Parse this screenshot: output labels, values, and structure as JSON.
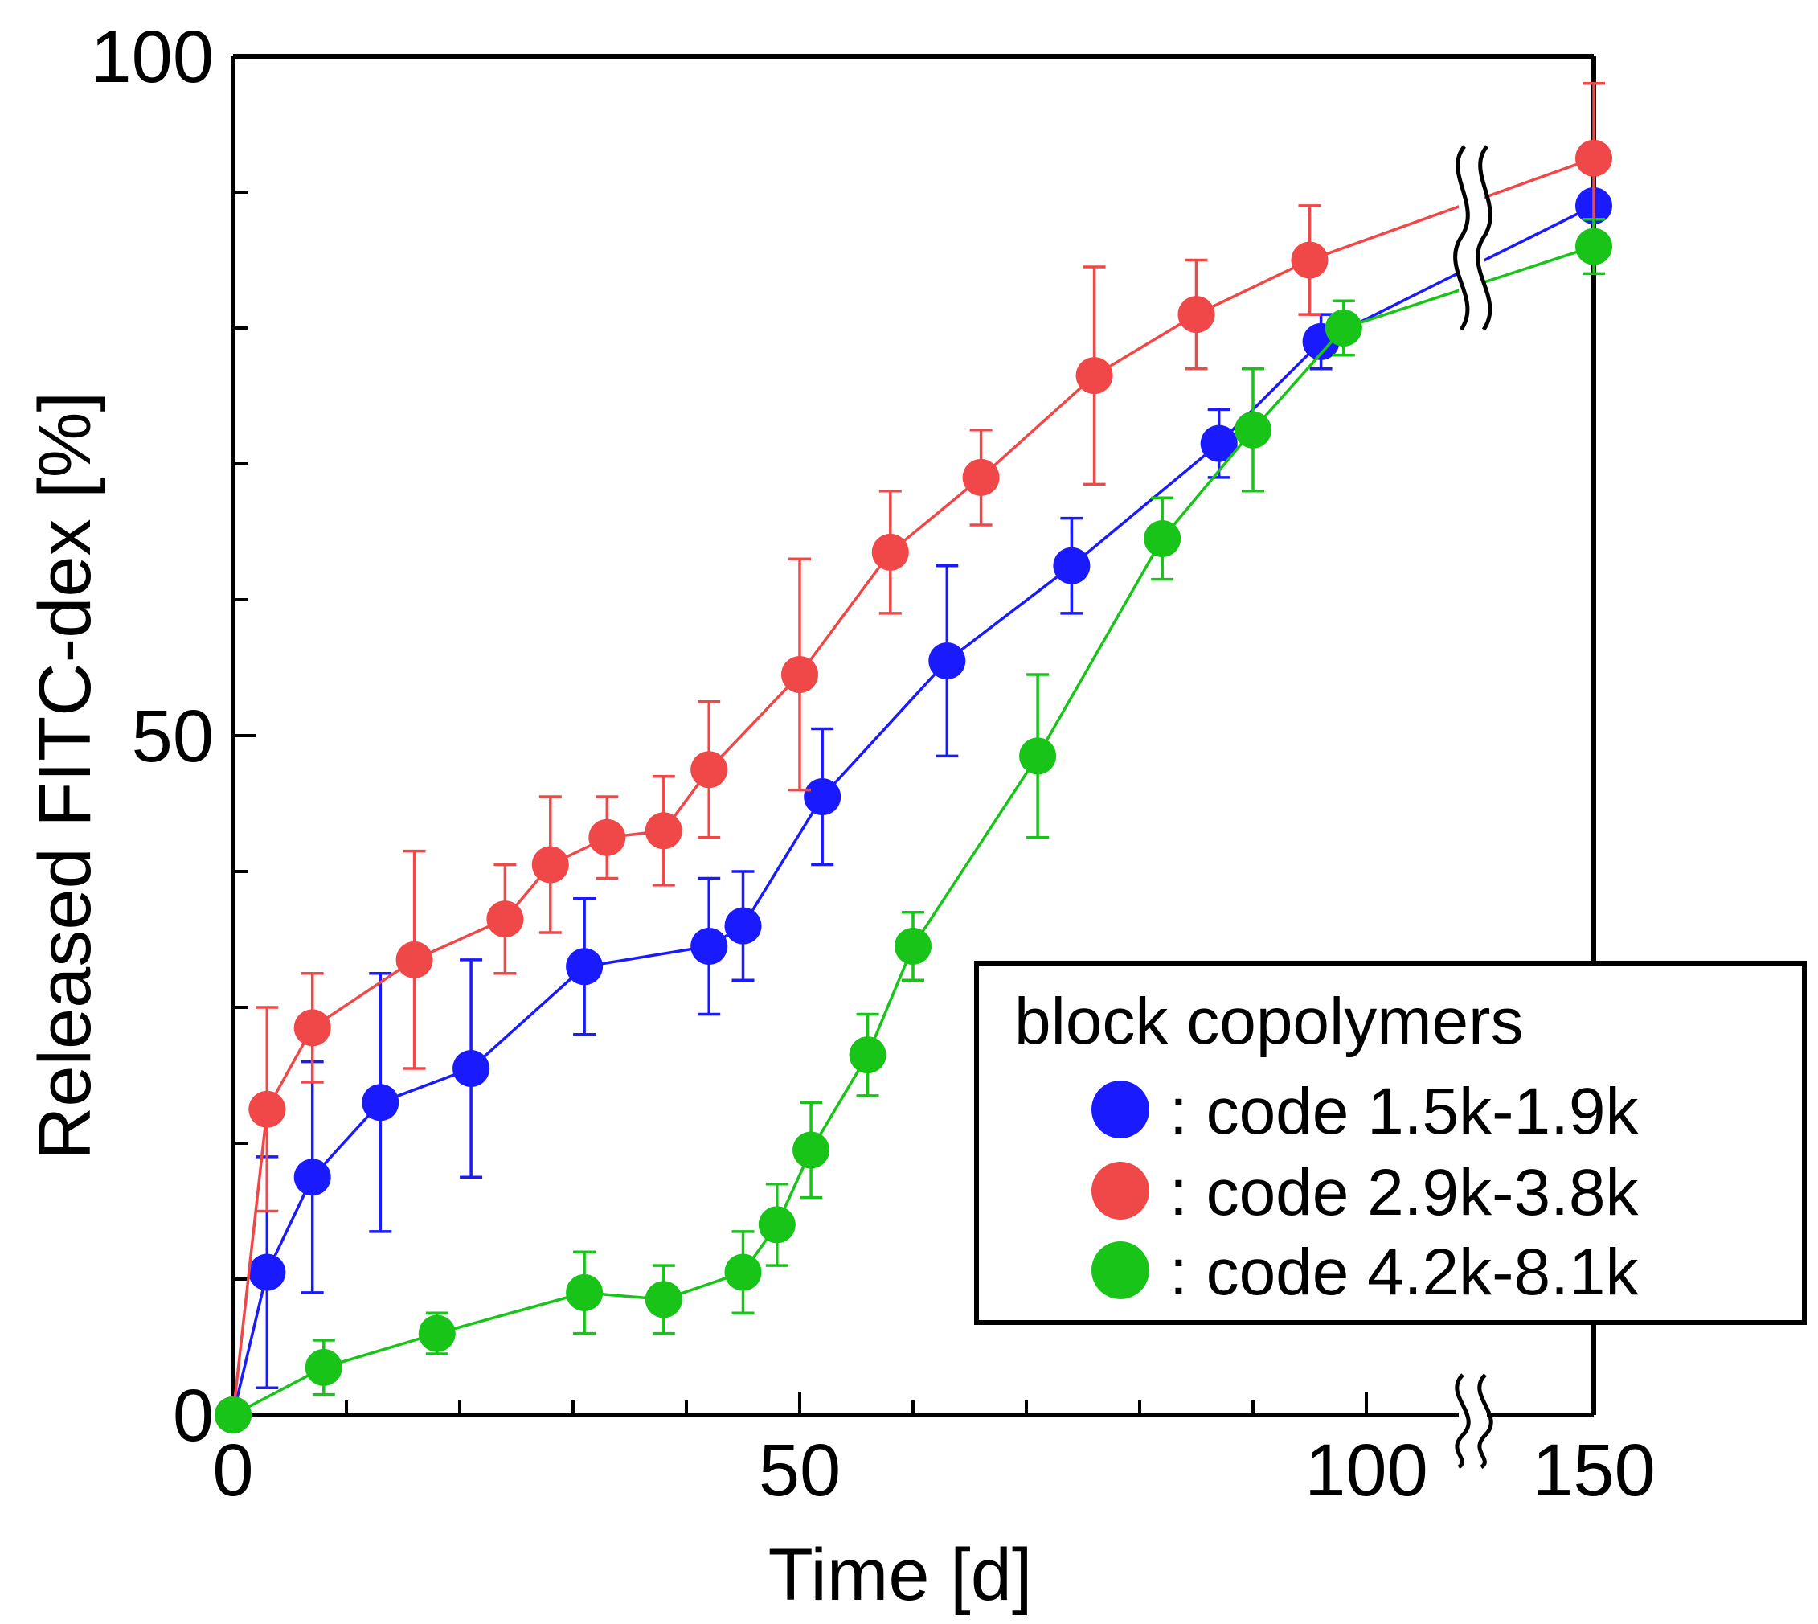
{
  "chart_data": {
    "type": "line",
    "xlabel": "Time [d]",
    "ylabel": "Released FITC-dex [%]",
    "xlim": [
      0,
      150
    ],
    "ylim": [
      0,
      100
    ],
    "x_axis_break": "between 100 and 150",
    "x_ticks": [
      "0",
      "50",
      "100",
      "150"
    ],
    "y_ticks": [
      "0",
      "50",
      "100"
    ],
    "grid": false,
    "legend": {
      "title": "block copolymers",
      "position": "bottom-right",
      "entries": [
        ": code 1.5k-1.9k",
        ": code 2.9k-3.8k",
        ": code 4.2k-8.1k"
      ]
    },
    "series": [
      {
        "name": ": code 1.5k-1.9k",
        "color": "#1a1aff",
        "x": [
          0,
          3,
          7,
          13,
          21,
          31,
          42,
          45,
          52,
          63,
          74,
          87,
          96,
          150
        ],
        "y": [
          0,
          10.5,
          17.5,
          23,
          25.5,
          33,
          34.5,
          36,
          45.5,
          55.5,
          62.5,
          71.5,
          79,
          89
        ],
        "err": [
          0,
          8.5,
          8.5,
          9.5,
          8,
          5,
          5,
          4,
          5,
          7,
          3.5,
          2.5,
          2,
          2.5
        ]
      },
      {
        "name": ": code 2.9k-3.8k",
        "color": "#f04848",
        "x": [
          0,
          3,
          7,
          16,
          24,
          28,
          33,
          38,
          42,
          50,
          58,
          66,
          76,
          85,
          95,
          150
        ],
        "y": [
          0,
          22.5,
          28.5,
          33.5,
          36.5,
          40.5,
          42.5,
          43,
          47.5,
          54.5,
          63.5,
          69,
          76.5,
          81,
          85,
          92.5
        ],
        "err": [
          0,
          7.5,
          4,
          8,
          4,
          5,
          3,
          4,
          5,
          8.5,
          4.5,
          3.5,
          8,
          4,
          4,
          5.5
        ]
      },
      {
        "name": ": code 4.2k-8.1k",
        "color": "#17c417",
        "x": [
          0,
          8,
          18,
          31,
          38,
          45,
          48,
          51,
          56,
          60,
          71,
          82,
          90,
          98,
          150
        ],
        "y": [
          0,
          3.5,
          6,
          9,
          8.5,
          10.5,
          14,
          19.5,
          26.5,
          34.5,
          48.5,
          64.5,
          72.5,
          80,
          86
        ],
        "err": [
          0,
          2,
          1.5,
          3,
          2.5,
          3,
          3,
          3.5,
          3,
          2.5,
          6,
          3,
          4.5,
          2,
          2
        ]
      }
    ]
  }
}
